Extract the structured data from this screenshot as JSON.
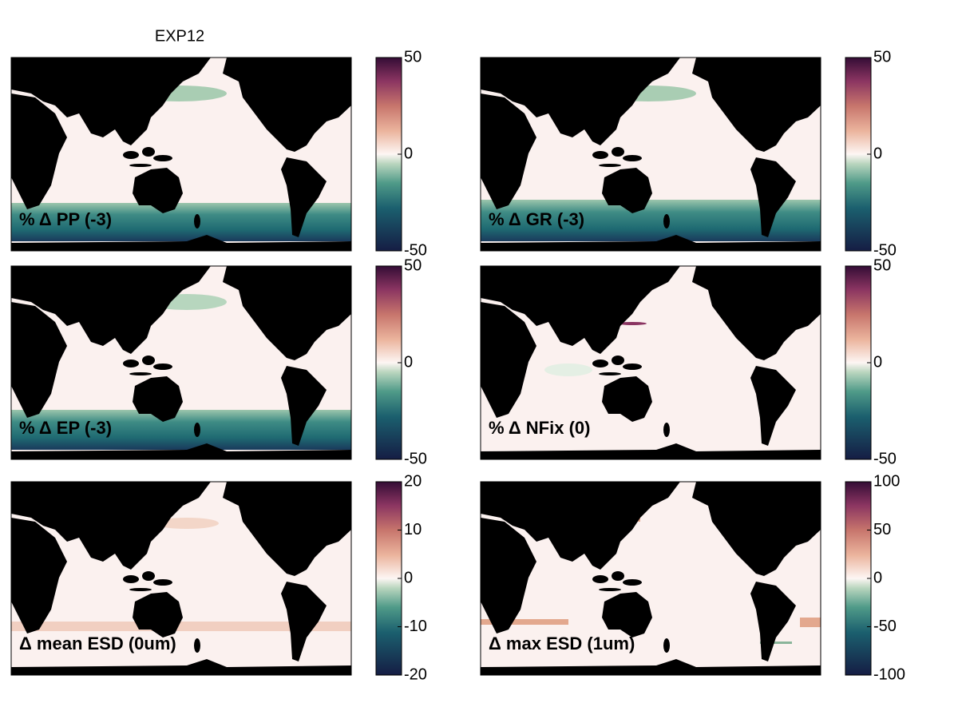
{
  "title": "EXP12",
  "panels": [
    {
      "label": "% Δ PP (-3)",
      "clim": [
        -50,
        50
      ],
      "cticks": [
        -50,
        0,
        50
      ]
    },
    {
      "label": "% Δ GR (-3)",
      "clim": [
        -50,
        50
      ],
      "cticks": [
        -50,
        0,
        50
      ]
    },
    {
      "label": "% Δ EP (-3)",
      "clim": [
        -50,
        50
      ],
      "cticks": [
        -50,
        0,
        50
      ]
    },
    {
      "label": "% Δ NFix (0)",
      "clim": [
        -50,
        50
      ],
      "cticks": [
        -50,
        0,
        50
      ]
    },
    {
      "label": "Δ mean ESD (0um)",
      "clim": [
        -20,
        20
      ],
      "cticks": [
        -20,
        -10,
        0,
        10,
        20
      ]
    },
    {
      "label": "Δ max ESD (1um)",
      "clim": [
        -100,
        100
      ],
      "cticks": [
        -100,
        -50,
        0,
        50,
        100
      ]
    }
  ]
}
